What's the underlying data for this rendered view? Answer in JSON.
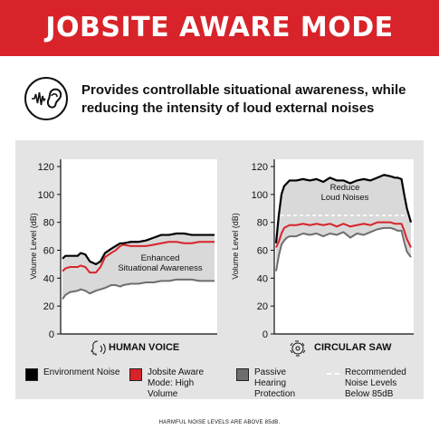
{
  "header": {
    "title": "JOBSITE AWARE MODE"
  },
  "intro": {
    "icon": "ear-sound-icon",
    "text": "Provides controllable situational awareness, while reducing the intensity of loud external noises"
  },
  "colors": {
    "accent": "#d8232a",
    "environment": "#000000",
    "aware": "#d8232a",
    "passive": "#6e6e6e",
    "recommended": "#ffffff",
    "panel": "#e4e4e4"
  },
  "chart_data": [
    {
      "type": "line",
      "title": "HUMAN VOICE",
      "icon": "talking-head-icon",
      "ylabel": "Volume Level (dB)",
      "ylim": [
        0,
        120
      ],
      "yticks": [
        0,
        20,
        40,
        60,
        80,
        100,
        120
      ],
      "x": [
        0,
        2,
        5,
        10,
        12,
        15,
        18,
        22,
        25,
        28,
        32,
        35,
        38,
        40,
        45,
        50,
        55,
        60,
        65,
        70,
        75,
        80,
        85,
        90,
        95,
        100
      ],
      "series": [
        {
          "name": "Environment Noise",
          "values": [
            54,
            56,
            56,
            56,
            58,
            57,
            52,
            50,
            52,
            58,
            61,
            63,
            65,
            65,
            66,
            66,
            67,
            69,
            71,
            71,
            72,
            72,
            71,
            71,
            71,
            71
          ]
        },
        {
          "name": "Jobsite Aware Mode: High Volume",
          "values": [
            45,
            47,
            48,
            48,
            49,
            48,
            44,
            44,
            48,
            55,
            58,
            60,
            63,
            64,
            63,
            63,
            63,
            64,
            65,
            66,
            66,
            65,
            65,
            66,
            66,
            66
          ]
        },
        {
          "name": "Passive Hearing Protection",
          "values": [
            25,
            28,
            30,
            31,
            32,
            31,
            29,
            31,
            32,
            33,
            35,
            35,
            34,
            35,
            36,
            36,
            37,
            37,
            38,
            38,
            39,
            39,
            39,
            38,
            38,
            38
          ]
        }
      ],
      "reference": {
        "name": "Recommended Noise Levels Below 85dB",
        "value": 85
      },
      "annotation": "Enhanced Situational Awareness"
    },
    {
      "type": "line",
      "title": "CIRCULAR SAW",
      "icon": "saw-blade-icon",
      "ylabel": "Volume Level (dB)",
      "ylim": [
        0,
        120
      ],
      "yticks": [
        0,
        20,
        40,
        60,
        80,
        100,
        120
      ],
      "x": [
        0,
        2,
        4,
        6,
        8,
        10,
        15,
        20,
        25,
        30,
        35,
        40,
        45,
        50,
        55,
        60,
        65,
        70,
        75,
        80,
        85,
        88,
        90,
        93,
        95,
        97,
        100
      ],
      "series": [
        {
          "name": "Environment Noise",
          "values": [
            65,
            85,
            100,
            106,
            108,
            110,
            110,
            111,
            110,
            111,
            109,
            112,
            110,
            110,
            108,
            110,
            111,
            110,
            112,
            114,
            113,
            112,
            112,
            111,
            100,
            90,
            80
          ]
        },
        {
          "name": "Jobsite Aware Mode: High Volume",
          "values": [
            62,
            66,
            72,
            76,
            77,
            78,
            78,
            79,
            78,
            79,
            78,
            79,
            77,
            79,
            77,
            78,
            79,
            78,
            80,
            80,
            80,
            79,
            79,
            79,
            74,
            68,
            62
          ]
        },
        {
          "name": "Passive Hearing Protection",
          "values": [
            45,
            56,
            64,
            67,
            69,
            70,
            70,
            72,
            71,
            72,
            70,
            72,
            71,
            73,
            69,
            72,
            71,
            73,
            75,
            76,
            76,
            75,
            74,
            74,
            66,
            59,
            55
          ]
        }
      ],
      "reference": {
        "name": "Recommended Noise Levels Below 85dB",
        "value": 85
      },
      "annotation": "Reduce Loud Noises"
    }
  ],
  "legend": [
    {
      "label": "Environment Noise",
      "color": "#000000"
    },
    {
      "label": "Jobsite Aware Mode: High Volume",
      "color": "#d8232a"
    },
    {
      "label": "Passive Hearing Protection",
      "color": "#6e6e6e"
    },
    {
      "label": "Recommended Noise Levels Below 85dB",
      "color": "#ffffff",
      "style": "dashed"
    }
  ],
  "footer": "HARMFUL NOISE LEVELS ARE ABOVE 85dB."
}
